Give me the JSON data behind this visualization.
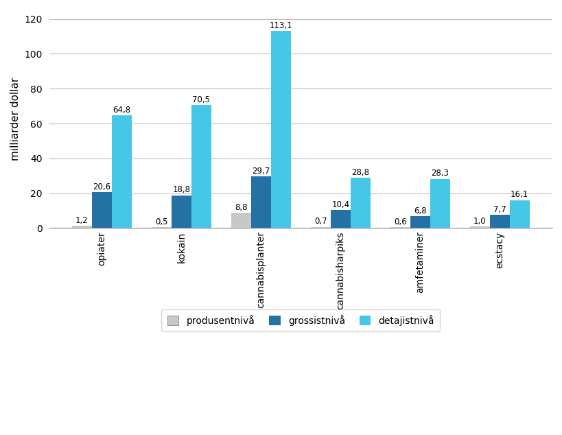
{
  "categories": [
    "opiater",
    "kokain",
    "cannabisplanter",
    "cannabisharpiks",
    "amfetaminer",
    "ecstacy"
  ],
  "produsentniva": [
    1.2,
    0.5,
    8.8,
    0.7,
    0.6,
    1.0
  ],
  "grossistniva": [
    20.6,
    18.8,
    29.7,
    10.4,
    6.8,
    7.7
  ],
  "detajistniva": [
    64.8,
    70.5,
    113.1,
    28.8,
    28.3,
    16.1
  ],
  "color_produsentniva": "#c8c8c8",
  "color_grossistniva": "#2471a3",
  "color_detajistniva": "#45c8e8",
  "ylabel": "milliarder dollar",
  "ylim": [
    0,
    125
  ],
  "yticks": [
    0,
    20,
    40,
    60,
    80,
    100,
    120
  ],
  "bar_width": 0.25,
  "label_produsentniva": "produsentnivå",
  "label_grossistniva": "grossistnivå",
  "label_detajistniva": "detajistnivå",
  "grid_color": "#bbbbbb",
  "fontsize_bar_labels": 8.5,
  "fontsize_xticks": 10,
  "fontsize_yticks": 10,
  "fontsize_ylabel": 11,
  "fontsize_legend": 10
}
